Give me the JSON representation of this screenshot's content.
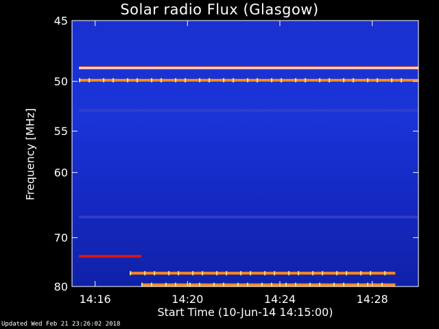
{
  "chart_data": {
    "type": "heatmap",
    "title": "Solar radio Flux (Glasgow)",
    "xlabel": "Start Time (10-Jun-14 14:15:00)",
    "ylabel": "Frequency [MHz]",
    "x_ticks": [
      "14:16",
      "14:20",
      "14:24",
      "14:28"
    ],
    "x_tick_minutes": [
      1,
      5,
      9,
      13
    ],
    "xlim_minutes": [
      0,
      15
    ],
    "y_ticks": [
      45,
      50,
      55,
      60,
      70,
      80
    ],
    "ylim": [
      45,
      80
    ],
    "y_scale": "reciprocal",
    "grid": false,
    "colors": {
      "background": "#1a2bc8",
      "low": "#1428b8",
      "mid": "#e0140a",
      "high": "#ffd060",
      "saturated": "#ffffff"
    },
    "emission_bands": [
      {
        "freq": 48.8,
        "t_start": 0.3,
        "t_end": 15,
        "level": "saturated"
      },
      {
        "freq": 49.9,
        "t_start": 0.3,
        "t_end": 15,
        "level": "high"
      },
      {
        "freq": 52.8,
        "t_start": 0.3,
        "t_end": 15,
        "level": "low"
      },
      {
        "freq": 66.5,
        "t_start": 0.3,
        "t_end": 15,
        "level": "low"
      },
      {
        "freq": 73.5,
        "t_start": 0.3,
        "t_end": 3.0,
        "level": "mid"
      },
      {
        "freq": 77.0,
        "t_start": 2.5,
        "t_end": 14.0,
        "level": "high"
      },
      {
        "freq": 79.6,
        "t_start": 3.0,
        "t_end": 14.0,
        "level": "high"
      }
    ]
  },
  "footer": {
    "updated": "Updated Wed Feb 21 23:26:02 2018"
  }
}
